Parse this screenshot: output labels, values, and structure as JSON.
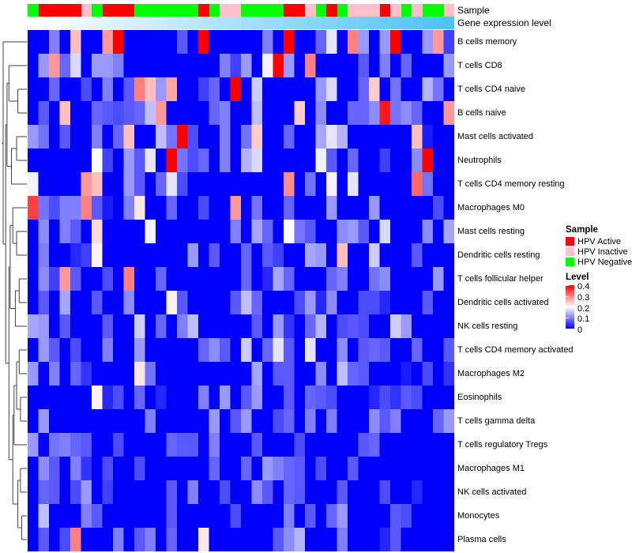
{
  "annotation_bars": {
    "sample_label": "Sample",
    "gene_label": "Gene expression level",
    "gene_gradient": {
      "start": "#FFFFFF",
      "end": "#4EC3F5"
    }
  },
  "legend": {
    "sample_title": "Sample",
    "sample_items": [
      {
        "label": "HPV Active",
        "color": "#FF0000"
      },
      {
        "label": "HPV Inactive",
        "color": "#FFC0CB"
      },
      {
        "label": "HPV Negative",
        "color": "#00FF00"
      }
    ],
    "level_title": "Level",
    "level_ticks": [
      "0.4",
      "0.3",
      "0.2",
      "0.1",
      "0"
    ]
  },
  "chart_data": {
    "type": "heatmap",
    "title": "",
    "rows": [
      "B cells memory",
      "T cells CD8",
      "T cells CD4 naive",
      "B cells naive",
      "Mast cells activated",
      "Neutrophils",
      "T cells CD4 memory resting",
      "Macrophages M0",
      "Mast cells resting",
      "Dendritic cells resting",
      "T cells follicular helper",
      "Dendritic cells activated",
      "NK cells resting",
      "T cells CD4 memory activated",
      "Macrophages M2",
      "Eosinophils",
      "T cells gamma delta",
      "T cells regulatory  Tregs",
      "Macrophages M1",
      "NK cells activated",
      "Monocytes",
      "Plasma cells"
    ],
    "n_columns": 40,
    "value_range": [
      0,
      0.4
    ],
    "colormap": {
      "0": "#0000FF",
      "0.2": "#FFFFFF",
      "0.4": "#FF0000"
    },
    "column_annotation_sample": [
      "HPV Negative",
      "HPV Active",
      "HPV Active",
      "HPV Active",
      "HPV Active",
      "HPV Inactive",
      "HPV Negative",
      "HPV Active",
      "HPV Active",
      "HPV Active",
      "HPV Negative",
      "HPV Negative",
      "HPV Negative",
      "HPV Negative",
      "HPV Negative",
      "HPV Negative",
      "HPV Active",
      "HPV Negative",
      "HPV Inactive",
      "HPV Inactive",
      "HPV Negative",
      "HPV Negative",
      "HPV Negative",
      "HPV Negative",
      "HPV Active",
      "HPV Active",
      "HPV Inactive",
      "HPV Negative",
      "HPV Active",
      "HPV Negative",
      "HPV Inactive",
      "HPV Inactive",
      "HPV Inactive",
      "HPV Active",
      "HPV Inactive",
      "HPV Negative",
      "HPV Inactive",
      "HPV Negative",
      "HPV Negative",
      "HPV Inactive"
    ],
    "column_annotation_gene_expression": "continuous white-to-skyblue gradient, low (left) to high (right)",
    "matrix": [
      [
        0,
        0,
        0.1,
        0,
        0.25,
        0,
        0,
        0.28,
        0.4,
        0,
        0,
        0,
        0,
        0,
        0.07,
        0,
        0.4,
        0,
        0,
        0,
        0,
        0,
        0.1,
        0,
        0.4,
        0,
        0,
        0.08,
        0.18,
        0,
        0.3,
        0.12,
        0,
        0.12,
        0.4,
        0,
        0,
        0.12,
        0.28,
        0.05
      ],
      [
        0,
        0.12,
        0.28,
        0.08,
        0.17,
        0,
        0.12,
        0.12,
        0.1,
        0,
        0,
        0,
        0,
        0,
        0,
        0,
        0,
        0,
        0.1,
        0.05,
        0.12,
        0,
        0.19,
        0.4,
        0.12,
        0,
        0.3,
        0,
        0,
        0,
        0,
        0.07,
        0,
        0.1,
        0,
        0.08,
        0,
        0,
        0,
        0.12
      ],
      [
        0,
        0,
        0.08,
        0,
        0,
        0.06,
        0,
        0.1,
        0,
        0.07,
        0.3,
        0.25,
        0.12,
        0.27,
        0,
        0,
        0.05,
        0.08,
        0,
        0.4,
        0,
        0.16,
        0,
        0,
        0,
        0,
        0,
        0.12,
        0.17,
        0,
        0,
        0.08,
        0.24,
        0,
        0.09,
        0,
        0,
        0.14,
        0.09,
        0
      ],
      [
        0,
        0.07,
        0,
        0.25,
        0,
        0,
        0.08,
        0.07,
        0.06,
        0.07,
        0.08,
        0.15,
        0.28,
        0,
        0,
        0,
        0,
        0.08,
        0.1,
        0,
        0,
        0.15,
        0,
        0,
        0,
        0.24,
        0,
        0.11,
        0,
        0,
        0.08,
        0.08,
        0.11,
        0.38,
        0.09,
        0.11,
        0.08,
        0,
        0,
        0.28
      ],
      [
        0.12,
        0.09,
        0,
        0.07,
        0,
        0,
        0.1,
        0,
        0.08,
        0.25,
        0,
        0,
        0.15,
        0.09,
        0.4,
        0.06,
        0,
        0,
        0.1,
        0,
        0.09,
        0.24,
        0,
        0,
        0.08,
        0,
        0,
        0.13,
        0.18,
        0.14,
        0,
        0,
        0,
        0,
        0,
        0,
        0.25,
        0.02,
        0,
        0
      ],
      [
        0,
        0,
        0,
        0,
        0,
        0,
        0.2,
        0.05,
        0,
        0.12,
        0.07,
        0.18,
        0,
        0.4,
        0.09,
        0.06,
        0.08,
        0,
        0.1,
        0,
        0.14,
        0.17,
        0,
        0,
        0,
        0,
        0,
        0.19,
        0.07,
        0,
        0.08,
        0,
        0,
        0.05,
        0,
        0,
        0.11,
        0.4,
        0,
        0
      ],
      [
        0.19,
        0,
        0,
        0,
        0,
        0.28,
        0.25,
        0,
        0,
        0.12,
        0.07,
        0,
        0.08,
        0.18,
        0.06,
        0,
        0,
        0,
        0,
        0,
        0,
        0,
        0,
        0,
        0.29,
        0,
        0.09,
        0,
        0.19,
        0,
        0.18,
        0,
        0,
        0,
        0,
        0,
        0.32,
        0.09,
        0,
        0
      ],
      [
        0.35,
        0.09,
        0.06,
        0.1,
        0.1,
        0.3,
        0.07,
        0.02,
        0,
        0.1,
        0.22,
        0,
        0,
        0.08,
        0,
        0,
        0.06,
        0,
        0,
        0.28,
        0,
        0.09,
        0,
        0,
        0.08,
        0,
        0,
        0,
        0.12,
        0,
        0,
        0,
        0.12,
        0,
        0,
        0,
        0,
        0,
        0.06,
        0
      ],
      [
        0,
        0.11,
        0,
        0.1,
        0.07,
        0,
        0.23,
        0,
        0,
        0,
        0,
        0.19,
        0,
        0,
        0,
        0,
        0,
        0,
        0,
        0.1,
        0,
        0.13,
        0.08,
        0,
        0.2,
        0.09,
        0.07,
        0,
        0,
        0.11,
        0.12,
        0.07,
        0,
        0.17,
        0,
        0,
        0,
        0.11,
        0,
        0.13
      ],
      [
        0,
        0.1,
        0,
        0,
        0.03,
        0.05,
        0.21,
        0,
        0,
        0,
        0,
        0,
        0,
        0,
        0,
        0.12,
        0,
        0.07,
        0,
        0,
        0.08,
        0,
        0.07,
        0.05,
        0,
        0,
        0.13,
        0.12,
        0,
        0.25,
        0,
        0,
        0.16,
        0,
        0,
        0,
        0.07,
        0,
        0,
        0
      ],
      [
        0,
        0.11,
        0.05,
        0.28,
        0.07,
        0,
        0,
        0.06,
        0,
        0.3,
        0,
        0,
        0.08,
        0,
        0,
        0,
        0,
        0,
        0,
        0,
        0.08,
        0,
        0.03,
        0.13,
        0.08,
        0,
        0,
        0,
        0.08,
        0.1,
        0,
        0,
        0.09,
        0.11,
        0,
        0,
        0,
        0,
        0.12,
        0
      ],
      [
        0,
        0.07,
        0,
        0.13,
        0,
        0,
        0.07,
        0,
        0,
        0.11,
        0,
        0,
        0,
        0.21,
        0.07,
        0,
        0,
        0,
        0,
        0.07,
        0.15,
        0.08,
        0,
        0,
        0,
        0.06,
        0.12,
        0.03,
        0.11,
        0,
        0,
        0.06,
        0.06,
        0.03,
        0,
        0,
        0,
        0.07,
        0,
        0
      ],
      [
        0.13,
        0.12,
        0,
        0.07,
        0,
        0,
        0,
        0.07,
        0,
        0,
        0.16,
        0,
        0.08,
        0,
        0.1,
        0.15,
        0,
        0,
        0,
        0,
        0,
        0.07,
        0,
        0.12,
        0.04,
        0,
        0.08,
        0.14,
        0,
        0.06,
        0.07,
        0.06,
        0,
        0,
        0.16,
        0.12,
        0,
        0,
        0,
        0
      ],
      [
        0,
        0.12,
        0.07,
        0,
        0.06,
        0,
        0,
        0.1,
        0,
        0,
        0.12,
        0,
        0,
        0,
        0,
        0,
        0.08,
        0.11,
        0.07,
        0,
        0.16,
        0,
        0.08,
        0.18,
        0.07,
        0,
        0.18,
        0,
        0,
        0.11,
        0,
        0.07,
        0.08,
        0.07,
        0,
        0,
        0.08,
        0,
        0,
        0.07
      ],
      [
        0.12,
        0,
        0.1,
        0,
        0.08,
        0.04,
        0,
        0,
        0,
        0,
        0.22,
        0.09,
        0,
        0,
        0,
        0,
        0,
        0,
        0,
        0,
        0,
        0.13,
        0,
        0.07,
        0.07,
        0,
        0,
        0.11,
        0,
        0.15,
        0.08,
        0.07,
        0,
        0,
        0,
        0.02,
        0,
        0.06,
        0,
        0.04
      ],
      [
        0,
        0,
        0,
        0,
        0,
        0,
        0.21,
        0.03,
        0.06,
        0,
        0.08,
        0,
        0.03,
        0,
        0,
        0,
        0.1,
        0,
        0.12,
        0,
        0.07,
        0.12,
        0,
        0,
        0.07,
        0,
        0.08,
        0.07,
        0.06,
        0,
        0,
        0,
        0.03,
        0.06,
        0.04,
        0.07,
        0.06,
        0,
        0,
        0
      ],
      [
        0,
        0.12,
        0,
        0,
        0,
        0,
        0,
        0,
        0,
        0,
        0,
        0.1,
        0,
        0,
        0,
        0,
        0,
        0.12,
        0,
        0.07,
        0.12,
        0,
        0,
        0.06,
        0.08,
        0,
        0.1,
        0,
        0.1,
        0,
        0,
        0,
        0.11,
        0.07,
        0.1,
        0,
        0,
        0,
        0.08,
        0.12
      ],
      [
        0.12,
        0,
        0.09,
        0.1,
        0.08,
        0.07,
        0,
        0,
        0.06,
        0,
        0,
        0,
        0,
        0.08,
        0.07,
        0.07,
        0,
        0.1,
        0,
        0,
        0,
        0.07,
        0,
        0,
        0,
        0.06,
        0,
        0,
        0,
        0,
        0,
        0.07,
        0.08,
        0,
        0,
        0,
        0,
        0,
        0,
        0
      ],
      [
        0,
        0.11,
        0.07,
        0,
        0.1,
        0.04,
        0,
        0.06,
        0,
        0,
        0.06,
        0,
        0,
        0,
        0,
        0,
        0,
        0.08,
        0,
        0,
        0.08,
        0,
        0.12,
        0.1,
        0.08,
        0.07,
        0,
        0.06,
        0,
        0,
        0.07,
        0,
        0,
        0,
        0,
        0,
        0,
        0,
        0,
        0
      ],
      [
        0,
        0.08,
        0.07,
        0,
        0.06,
        0.12,
        0,
        0.05,
        0,
        0,
        0,
        0,
        0,
        0.07,
        0,
        0.1,
        0,
        0,
        0.06,
        0,
        0,
        0.11,
        0.07,
        0,
        0.08,
        0.07,
        0,
        0,
        0,
        0.07,
        0,
        0,
        0,
        0.06,
        0,
        0,
        0.03,
        0,
        0,
        0
      ],
      [
        0,
        0.15,
        0,
        0,
        0,
        0.1,
        0.07,
        0,
        0,
        0,
        0,
        0,
        0,
        0.07,
        0,
        0,
        0,
        0,
        0,
        0.06,
        0,
        0,
        0,
        0,
        0.1,
        0,
        0.07,
        0,
        0.08,
        0.12,
        0,
        0,
        0,
        0,
        0.07,
        0.06,
        0,
        0,
        0,
        0
      ],
      [
        0,
        0.07,
        0,
        0.06,
        0.3,
        0,
        0,
        0,
        0.1,
        0,
        0.07,
        0.1,
        0,
        0.08,
        0,
        0,
        0.22,
        0,
        0,
        0,
        0,
        0,
        0,
        0.07,
        0.11,
        0.14,
        0,
        0,
        0,
        0.1,
        0,
        0,
        0,
        0.03,
        0.07,
        0,
        0,
        0,
        0,
        0
      ]
    ],
    "row_dendrogram": {
      "h": 18.5,
      "c": [
        0,
        {
          "h": 16.5,
          "c": [
            {
              "h": 15.5,
              "c": [
                {
                  "h": 14,
                  "c": [
                    1,
                    {
                      "h": 7,
                      "c": [
                        2,
                        3
                      ]
                    }
                  ]
                },
                {
                  "h": 12,
                  "c": [
                    {
                      "h": 8,
                      "c": [
                        4,
                        5
                      ]
                    },
                    6
                  ]
                }
              ]
            },
            {
              "h": 14,
              "c": [
                {
                  "h": 13,
                  "c": [
                    {
                      "h": 11,
                      "c": [
                        7,
                        {
                          "h": 8,
                          "c": [
                            8,
                            9
                          ]
                        }
                      ]
                    },
                    {
                      "h": 9,
                      "c": [
                        {
                          "h": 6,
                          "c": [
                            10,
                            11
                          ]
                        },
                        12
                      ]
                    }
                  ]
                },
                {
                  "h": 11,
                  "c": [
                    {
                      "h": 10,
                      "c": [
                        {
                          "h": 8,
                          "c": [
                            {
                              "h": 6,
                              "c": [
                                13,
                                14
                              ]
                            },
                            {
                              "h": 5,
                              "c": [
                                15,
                                16
                              ]
                            }
                          ]
                        },
                        17
                      ]
                    },
                    {
                      "h": 7,
                      "c": [
                        {
                          "h": 5,
                          "c": [
                            18,
                            19
                          ]
                        },
                        {
                          "h": 4,
                          "c": [
                            20,
                            21
                          ]
                        }
                      ]
                    }
                  ]
                }
              ]
            }
          ]
        }
      ]
    }
  }
}
